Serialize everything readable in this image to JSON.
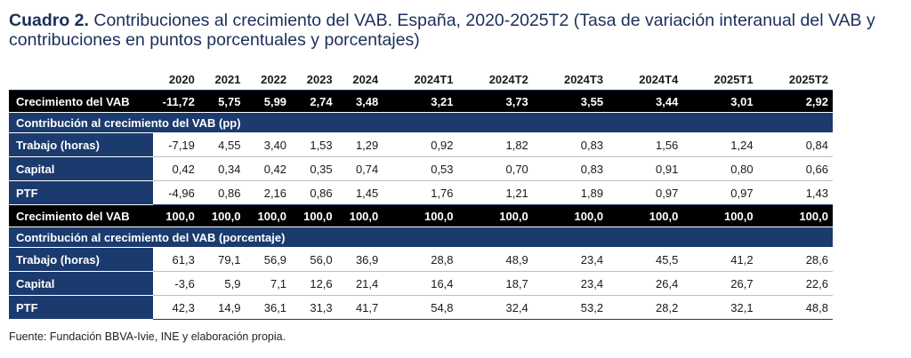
{
  "title": {
    "lead": "Cuadro 2.",
    "text": "Contribuciones al crecimiento del VAB. España, 2020-2025T2 (Tasa de variación interanual del VAB y contribuciones en puntos porcentuales y porcentajes)"
  },
  "columns": [
    "2020",
    "2021",
    "2022",
    "2023",
    "2024",
    "2024T1",
    "2024T2",
    "2024T3",
    "2024T4",
    "2025T1",
    "2025T2"
  ],
  "row_growth_1": {
    "label": "Crecimiento del VAB",
    "values": [
      "-11,72",
      "5,75",
      "5,99",
      "2,74",
      "3,48",
      "3,21",
      "3,73",
      "3,55",
      "3,44",
      "3,01",
      "2,92"
    ]
  },
  "section_pp": "Contribución al crecimiento del VAB (pp)",
  "pp_rows": [
    {
      "label": "Trabajo (horas)",
      "values": [
        "-7,19",
        "4,55",
        "3,40",
        "1,53",
        "1,29",
        "0,92",
        "1,82",
        "0,83",
        "1,56",
        "1,24",
        "0,84"
      ]
    },
    {
      "label": "Capital",
      "values": [
        "0,42",
        "0,34",
        "0,42",
        "0,35",
        "0,74",
        "0,53",
        "0,70",
        "0,83",
        "0,91",
        "0,80",
        "0,66"
      ]
    },
    {
      "label": "PTF",
      "values": [
        "-4,96",
        "0,86",
        "2,16",
        "0,86",
        "1,45",
        "1,76",
        "1,21",
        "1,89",
        "0,97",
        "0,97",
        "1,43"
      ]
    }
  ],
  "row_growth_2": {
    "label": "Crecimiento del VAB",
    "values": [
      "100,0",
      "100,0",
      "100,0",
      "100,0",
      "100,0",
      "100,0",
      "100,0",
      "100,0",
      "100,0",
      "100,0",
      "100,0"
    ]
  },
  "section_pct": "Contribución al crecimiento del VAB (porcentaje)",
  "pct_rows": [
    {
      "label": "Trabajo (horas)",
      "values": [
        "61,3",
        "79,1",
        "56,9",
        "56,0",
        "36,9",
        "28,8",
        "48,9",
        "23,4",
        "45,5",
        "41,2",
        "28,6"
      ]
    },
    {
      "label": "Capital",
      "values": [
        "-3,6",
        "5,9",
        "7,1",
        "12,6",
        "21,4",
        "16,4",
        "18,7",
        "23,4",
        "26,4",
        "26,7",
        "22,6"
      ]
    },
    {
      "label": "PTF",
      "values": [
        "42,3",
        "14,9",
        "36,1",
        "31,3",
        "41,7",
        "54,8",
        "32,4",
        "53,2",
        "28,2",
        "32,1",
        "48,8"
      ]
    }
  ],
  "source": "Fuente: Fundación BBVA-Ivie, INE y elaboración propia.",
  "colors": {
    "navy": "#1b3b6f",
    "black": "#000000",
    "title": "#1b2f5b"
  }
}
